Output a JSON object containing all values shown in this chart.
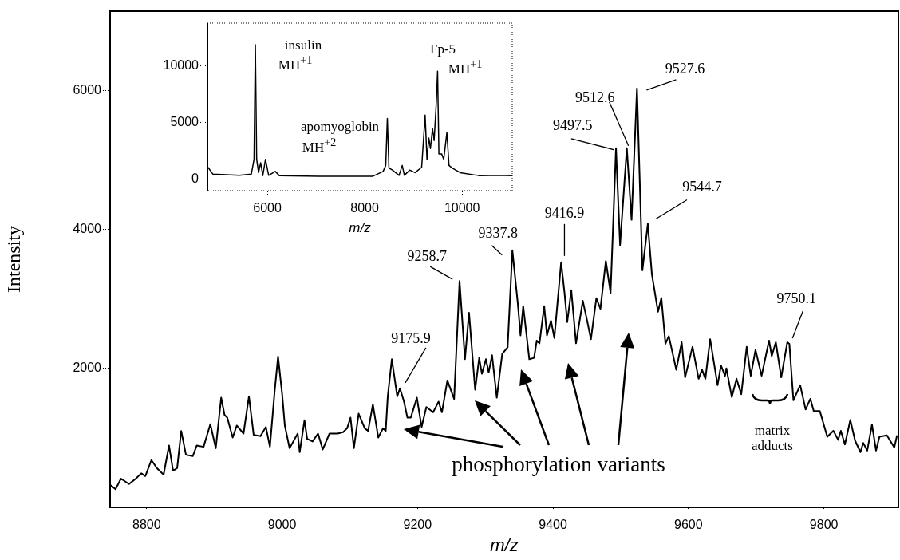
{
  "chart_data": [
    {
      "type": "line",
      "xlabel": "m/z",
      "ylabel": "Intensity",
      "xlim": [
        8746,
        9910
      ],
      "xticks": [
        8800,
        9000,
        9200,
        9400,
        9600,
        9800
      ],
      "ylim": [
        0,
        7140
      ],
      "yticks": [
        2000,
        4000,
        6000
      ],
      "color": "#000000",
      "x": [
        8747,
        8754,
        8762,
        8774,
        8784,
        8792,
        8798,
        8807,
        8815,
        8825,
        8833,
        8839,
        8845,
        8851,
        8858,
        8868,
        8874,
        8884,
        8894,
        8902,
        8910,
        8915,
        8919,
        8927,
        8933,
        8943,
        8951,
        8958,
        8968,
        8976,
        8982,
        8989,
        8994,
        9000,
        9004,
        9011,
        9023,
        9026,
        9033,
        9037,
        9045,
        9053,
        9060,
        9070,
        9082,
        9090,
        9096,
        9101,
        9106,
        9113,
        9122,
        9127,
        9134,
        9142,
        9149,
        9153,
        9156,
        9162,
        9170,
        9174,
        9180,
        9185,
        9190,
        9199,
        9206,
        9213,
        9223,
        9231,
        9236,
        9244,
        9254,
        9262,
        9270,
        9276,
        9285,
        9291,
        9295,
        9301,
        9305,
        9310,
        9317,
        9325,
        9333,
        9340,
        9348,
        9352,
        9356,
        9365,
        9372,
        9376,
        9380,
        9387,
        9391,
        9397,
        9402,
        9412,
        9417,
        9421,
        9427,
        9434,
        9444,
        9450,
        9456,
        9464,
        9470,
        9478,
        9485,
        9493,
        9499,
        9509,
        9516,
        9524,
        9532,
        9540,
        9546,
        9555,
        9560,
        9566,
        9571,
        9582,
        9590,
        9595,
        9606,
        9615,
        9620,
        9625,
        9632,
        9643,
        9648,
        9654,
        9656,
        9664,
        9671,
        9678,
        9686,
        9692,
        9699,
        9708,
        9719,
        9723,
        9729,
        9737,
        9746,
        9749,
        9755,
        9765,
        9773,
        9780,
        9785,
        9794,
        9805,
        9814,
        9821,
        9825,
        9831,
        9839,
        9846,
        9854,
        9858,
        9864,
        9871,
        9877,
        9882,
        9893,
        9904,
        9908
      ],
      "values": [
        317,
        260,
        413,
        336,
        413,
        489,
        450,
        680,
        565,
        470,
        890,
        527,
        565,
        1100,
        756,
        737,
        890,
        871,
        1196,
        851,
        1578,
        1329,
        1291,
        1005,
        1177,
        1062,
        1597,
        1043,
        1024,
        1157,
        871,
        1673,
        2170,
        1635,
        1177,
        851,
        1062,
        794,
        1253,
        986,
        948,
        1062,
        833,
        1062,
        1062,
        1081,
        1138,
        1291,
        851,
        1348,
        1138,
        1100,
        1482,
        1005,
        1138,
        1100,
        1597,
        2132,
        1597,
        1712,
        1521,
        1291,
        1291,
        1578,
        1157,
        1444,
        1368,
        1521,
        1368,
        1826,
        1559,
        3258,
        2132,
        2800,
        1693,
        2151,
        1922,
        2132,
        1941,
        2189,
        1578,
        2208,
        2303,
        3698,
        2934,
        2475,
        2896,
        2132,
        2151,
        2399,
        2361,
        2896,
        2475,
        2685,
        2437,
        3526,
        3086,
        2666,
        3125,
        2361,
        2972,
        2705,
        2418,
        3010,
        2857,
        3545,
        3086,
        5168,
        3774,
        5168,
        4137,
        6028,
        3411,
        4080,
        3354,
        2816,
        3013,
        2354,
        2464,
        1981,
        2376,
        1871,
        2310,
        1850,
        1981,
        1850,
        2420,
        1758,
        2043,
        1893,
        2000,
        1585,
        1850,
        1628,
        2310,
        1893,
        2266,
        1893,
        2400,
        2178,
        2376,
        1871,
        2376,
        2354,
        1541,
        1758,
        1408,
        1562,
        1387,
        1387,
        1015,
        1102,
        971,
        1102,
        905,
        1256,
        961,
        795,
        927,
        817,
        1191,
        817,
        1015,
        1037,
        862,
        1037
      ],
      "annotations": [
        {
          "text": "9175.9",
          "x": 9175.9,
          "y": 1712
        },
        {
          "text": "9258.7",
          "x": 9258.7,
          "y": 3258
        },
        {
          "text": "9337.8",
          "x": 9337.8,
          "y": 3698
        },
        {
          "text": "9416.9",
          "x": 9416.9,
          "y": 3526
        },
        {
          "text": "9497.5",
          "x": 9497.5,
          "y": 5168
        },
        {
          "text": "9512.6",
          "x": 9512.6,
          "y": 5168
        },
        {
          "text": "9527.6",
          "x": 9527.6,
          "y": 6028
        },
        {
          "text": "9544.7",
          "x": 9544.7,
          "y": 4080
        },
        {
          "text": "9750.1",
          "x": 9750.1,
          "y": 2376
        },
        "phosphorylation variants",
        "matrix adducts"
      ]
    },
    {
      "type": "line",
      "xlabel": "m/z",
      "xlim": [
        4770,
        11030
      ],
      "xticks": [
        6000,
        8000,
        10000
      ],
      "ylim": [
        -1000,
        13800
      ],
      "yticks": [
        0,
        5000,
        10000
      ],
      "color": "#000000",
      "x": [
        4782,
        4880,
        5426,
        5672,
        5727,
        5754,
        5781,
        5820,
        5863,
        5907,
        5962,
        6027,
        6164,
        6246,
        7066,
        8160,
        8378,
        8432,
        8465,
        8498,
        8569,
        8706,
        8771,
        8815,
        8924,
        9033,
        9170,
        9241,
        9279,
        9317,
        9350,
        9393,
        9426,
        9470,
        9497,
        9524,
        9579,
        9623,
        9688,
        9732,
        9797,
        9961,
        10344,
        10781,
        11027
      ],
      "values": [
        1060,
        470,
        350,
        470,
        1770,
        11900,
        1770,
        590,
        1470,
        330,
        1770,
        350,
        700,
        330,
        260,
        260,
        700,
        1230,
        5380,
        1000,
        820,
        350,
        1230,
        350,
        820,
        590,
        1060,
        5670,
        1770,
        3660,
        2720,
        4490,
        3430,
        6730,
        9550,
        2250,
        2250,
        1770,
        4130,
        1230,
        1000,
        590,
        330,
        350,
        330
      ],
      "annotations": [
        "insulin",
        "MH$^{+1}$",
        "Fp-5",
        "MH$^{+1}$",
        "apomyoglobin",
        "MH$^{+2}$"
      ]
    }
  ]
}
